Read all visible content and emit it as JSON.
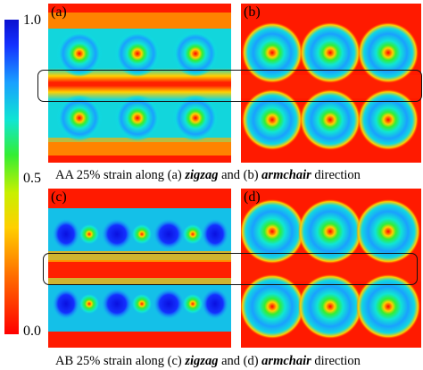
{
  "colorbar": {
    "max_label": "1.0",
    "mid_label": "0.5",
    "min_label": "0.0",
    "colors": [
      "#ff0000",
      "#ff6a00",
      "#ffd000",
      "#33ee33",
      "#10e6d2",
      "#1aa0ff",
      "#1430ff"
    ]
  },
  "panels": [
    {
      "letter": "(a)",
      "stacking": "AA",
      "direction": "zigzag"
    },
    {
      "letter": "(b)",
      "stacking": "AA",
      "direction": "armchair"
    },
    {
      "letter": "(c)",
      "stacking": "AB",
      "direction": "zigzag"
    },
    {
      "letter": "(d)",
      "stacking": "AB",
      "direction": "armchair"
    }
  ],
  "captions": {
    "top": {
      "prefix": "AA 25% strain along (a) ",
      "em1": "zigzag",
      "mid": " and (b) ",
      "em2": "armchair",
      "suffix": " direction"
    },
    "bottom": {
      "prefix": "AB 25% strain along (c) ",
      "em1": "zigzag",
      "mid": " and (d) ",
      "em2": "armchair",
      "suffix": " direction"
    }
  }
}
